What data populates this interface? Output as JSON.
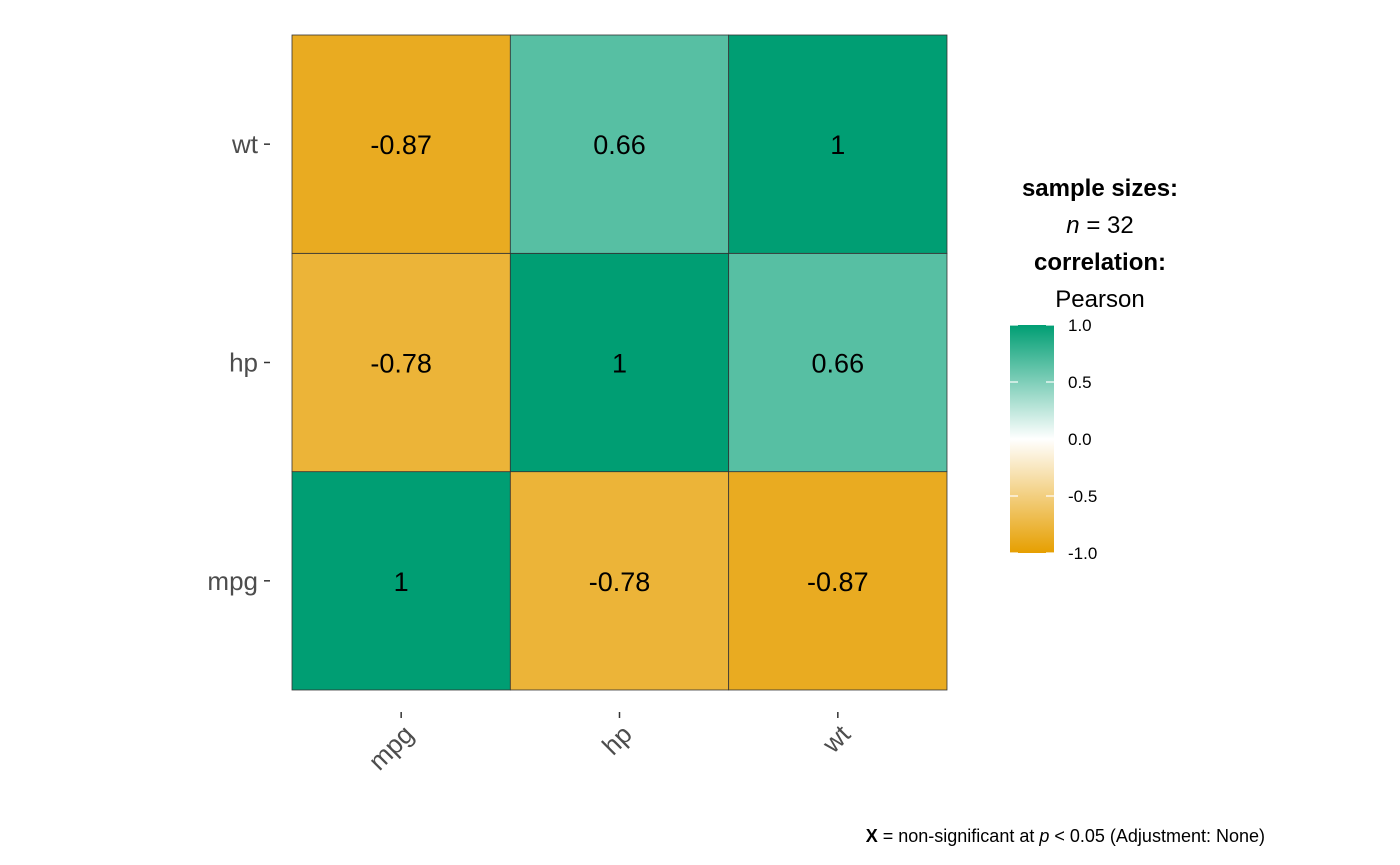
{
  "chart_data": {
    "type": "heatmap",
    "x_categories": [
      "mpg",
      "hp",
      "wt"
    ],
    "y_categories": [
      "mpg",
      "hp",
      "wt"
    ],
    "matrix": [
      [
        1,
        -0.78,
        -0.87
      ],
      [
        -0.78,
        1,
        0.66
      ],
      [
        -0.87,
        0.66,
        1
      ]
    ],
    "cell_labels": [
      [
        "1",
        "-0.78",
        "-0.87"
      ],
      [
        "-0.78",
        "1",
        "0.66"
      ],
      [
        "-0.87",
        "0.66",
        "1"
      ]
    ],
    "color_scale": {
      "low": "#E69F00",
      "mid": "#FFFFFF",
      "high": "#009E73",
      "limits": [
        -1.0,
        1.0
      ],
      "ticks": [
        "1.0",
        "0.5",
        "0.0",
        "-0.5",
        "-1.0"
      ]
    }
  },
  "legend": {
    "sample_sizes_title": "sample sizes:",
    "n_symbol": "n",
    "n_equals": " = 32",
    "correlation_title": "correlation:",
    "correlation_type": "Pearson"
  },
  "caption": {
    "x_symbol": "X",
    "text_1": " = non-significant at ",
    "p_symbol": "p",
    "text_2": " < 0.05 (Adjustment: None)"
  }
}
